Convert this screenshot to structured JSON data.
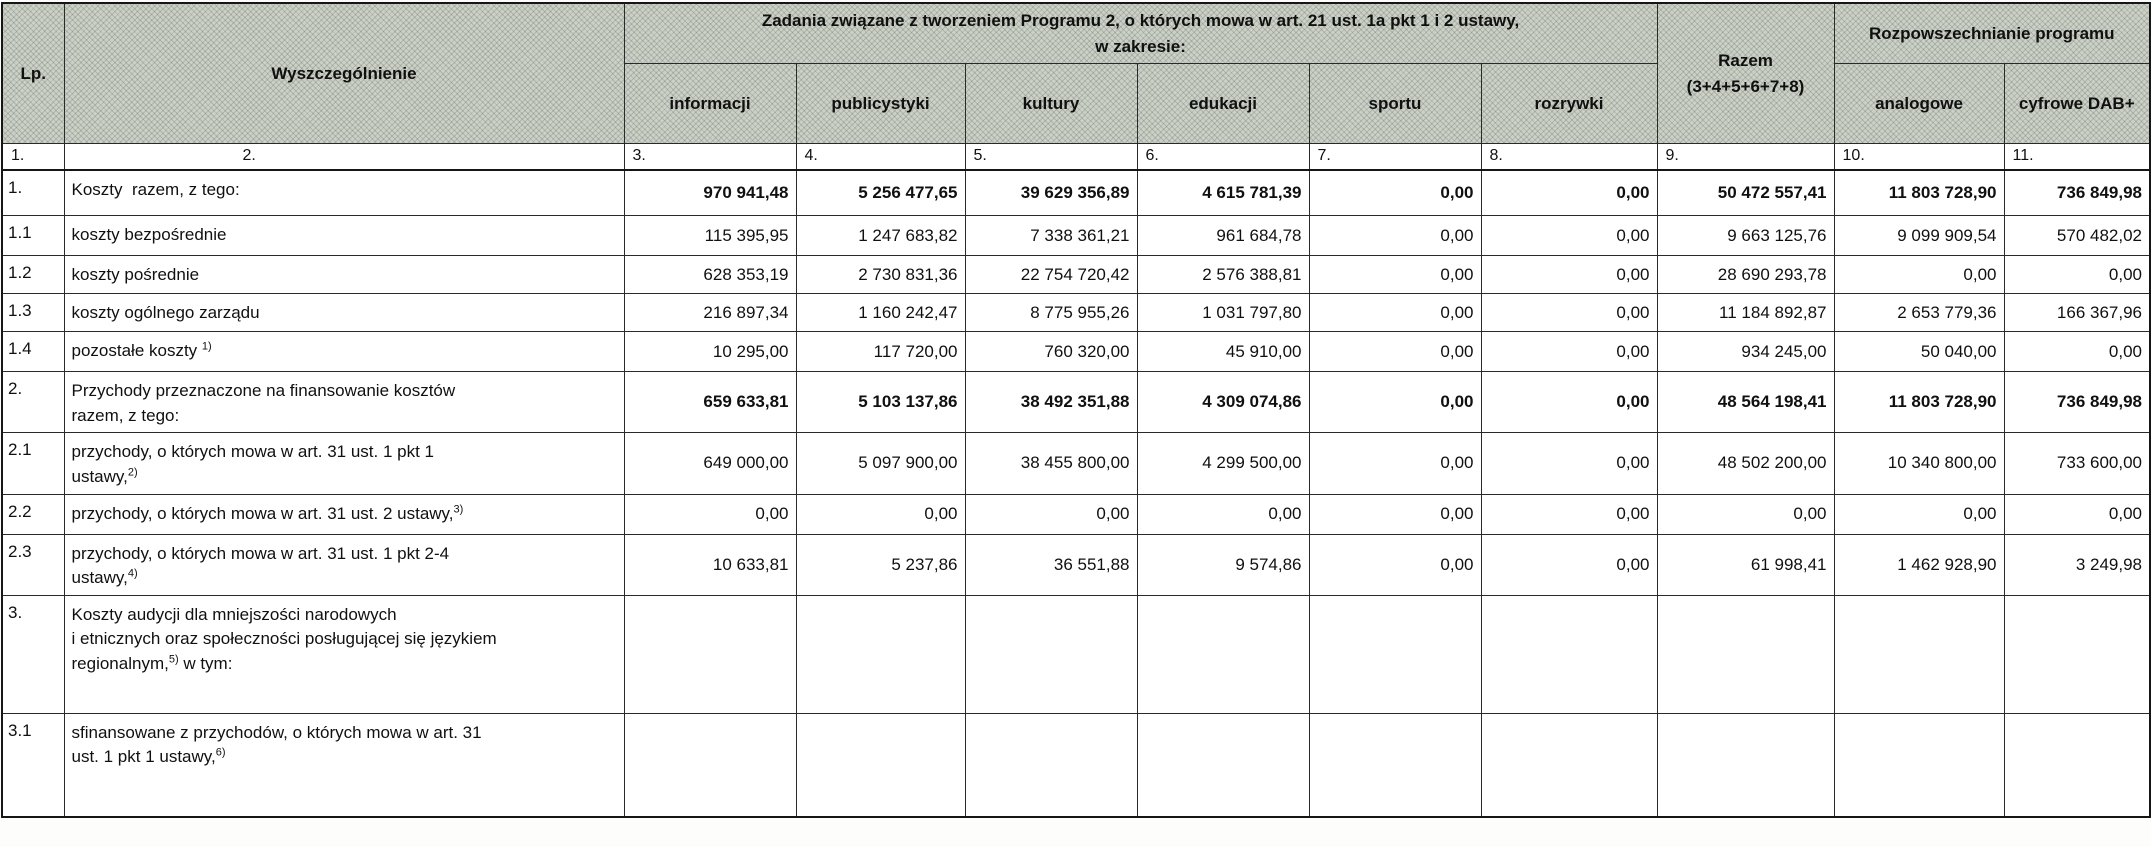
{
  "colors": {
    "header_shading": "#ccd1c7",
    "border": "#161616",
    "cell_background": "#ffffff"
  },
  "header": {
    "lp": "Lp.",
    "wyszczegolnienie": "Wyszczególnienie",
    "zadania_group": "Zadania związane z tworzeniem Programu 2, o których mowa w art. 21 ust. 1a pkt 1 i 2 ustawy,\nw zakresie:",
    "zadania_cols": [
      "informacji",
      "publicystyki",
      "kultury",
      "edukacji",
      "sportu",
      "rozrywki"
    ],
    "razem": "Razem\n(3+4+5+6+7+8)",
    "rozpowszechnianie_group": "Rozpowszechnianie programu",
    "rozpowszechnianie_cols": [
      "analogowe",
      "cyfrowe DAB+"
    ],
    "column_numbers": [
      "1.",
      "2.",
      "3.",
      "4.",
      "5.",
      "6.",
      "7.",
      "8.",
      "9.",
      "10.",
      "11."
    ]
  },
  "rows": [
    {
      "lp": "1.",
      "bold": true,
      "label": [
        {
          "t": "Koszty  razem, z tego:"
        }
      ],
      "values": [
        "970 941,48",
        "5 256 477,65",
        "39 629 356,89",
        "4 615 781,39",
        "0,00",
        "0,00",
        "50 472 557,41",
        "11 803 728,90",
        "736 849,98"
      ]
    },
    {
      "lp": "1.1",
      "bold": false,
      "label": [
        {
          "t": "koszty bezpośrednie"
        }
      ],
      "values": [
        "115 395,95",
        "1 247 683,82",
        "7 338 361,21",
        "961 684,78",
        "0,00",
        "0,00",
        "9 663 125,76",
        "9 099 909,54",
        "570 482,02"
      ]
    },
    {
      "lp": "1.2",
      "bold": false,
      "label": [
        {
          "t": "koszty pośrednie"
        }
      ],
      "values": [
        "628 353,19",
        "2 730 831,36",
        "22 754 720,42",
        "2 576 388,81",
        "0,00",
        "0,00",
        "28 690 293,78",
        "0,00",
        "0,00"
      ]
    },
    {
      "lp": "1.3",
      "bold": false,
      "label": [
        {
          "t": "koszty ogólnego zarządu"
        }
      ],
      "values": [
        "216 897,34",
        "1 160 242,47",
        "8 775 955,26",
        "1 031 797,80",
        "0,00",
        "0,00",
        "11 184 892,87",
        "2 653 779,36",
        "166 367,96"
      ]
    },
    {
      "lp": "1.4",
      "bold": false,
      "label": [
        {
          "t": "pozostałe koszty "
        },
        {
          "s": "1)"
        }
      ],
      "values": [
        "10 295,00",
        "117 720,00",
        "760 320,00",
        "45 910,00",
        "0,00",
        "0,00",
        "934 245,00",
        "50 040,00",
        "0,00"
      ]
    },
    {
      "lp": "2.",
      "bold": true,
      "label": [
        {
          "t": "Przychody przeznaczone na finansowanie kosztów\nrazem, z tego:"
        }
      ],
      "values": [
        "659 633,81",
        "5 103 137,86",
        "38 492 351,88",
        "4 309 074,86",
        "0,00",
        "0,00",
        "48 564 198,41",
        "11 803 728,90",
        "736 849,98"
      ]
    },
    {
      "lp": "2.1",
      "bold": false,
      "label": [
        {
          "t": "przychody, o których mowa w art. 31 ust. 1 pkt 1\nustawy,"
        },
        {
          "s": "2)"
        }
      ],
      "values": [
        "649 000,00",
        "5 097 900,00",
        "38 455 800,00",
        "4 299 500,00",
        "0,00",
        "0,00",
        "48 502 200,00",
        "10 340 800,00",
        "733 600,00"
      ]
    },
    {
      "lp": "2.2",
      "bold": false,
      "label": [
        {
          "t": "przychody, o których mowa w art. 31 ust. 2 ustawy,"
        },
        {
          "s": "3)"
        }
      ],
      "values": [
        "0,00",
        "0,00",
        "0,00",
        "0,00",
        "0,00",
        "0,00",
        "0,00",
        "0,00",
        "0,00"
      ]
    },
    {
      "lp": "2.3",
      "bold": false,
      "label": [
        {
          "t": "przychody, o których mowa w art. 31 ust. 1 pkt 2-4\nustawy,"
        },
        {
          "s": "4)"
        }
      ],
      "values": [
        "10 633,81",
        "5 237,86",
        "36 551,88",
        "9 574,86",
        "0,00",
        "0,00",
        "61 998,41",
        "1 462 928,90",
        "3 249,98"
      ]
    },
    {
      "lp": "3.",
      "bold": false,
      "label": [
        {
          "t": "Koszty audycji dla mniejszości narodowych\ni etnicznych oraz społeczności posługującej się językiem\nregionalnym,"
        },
        {
          "s": "5)"
        },
        {
          "t": " w tym:"
        }
      ],
      "values": [
        "",
        "",
        "",
        "",
        "",
        "",
        "",
        "",
        ""
      ]
    },
    {
      "lp": "3.1",
      "bold": false,
      "label": [
        {
          "t": "sfinansowane z przychodów, o których mowa w art. 31\nust. 1 pkt 1 ustawy,"
        },
        {
          "s": "6)"
        }
      ],
      "values": [
        "",
        "",
        "",
        "",
        "",
        "",
        "",
        "",
        ""
      ]
    }
  ]
}
